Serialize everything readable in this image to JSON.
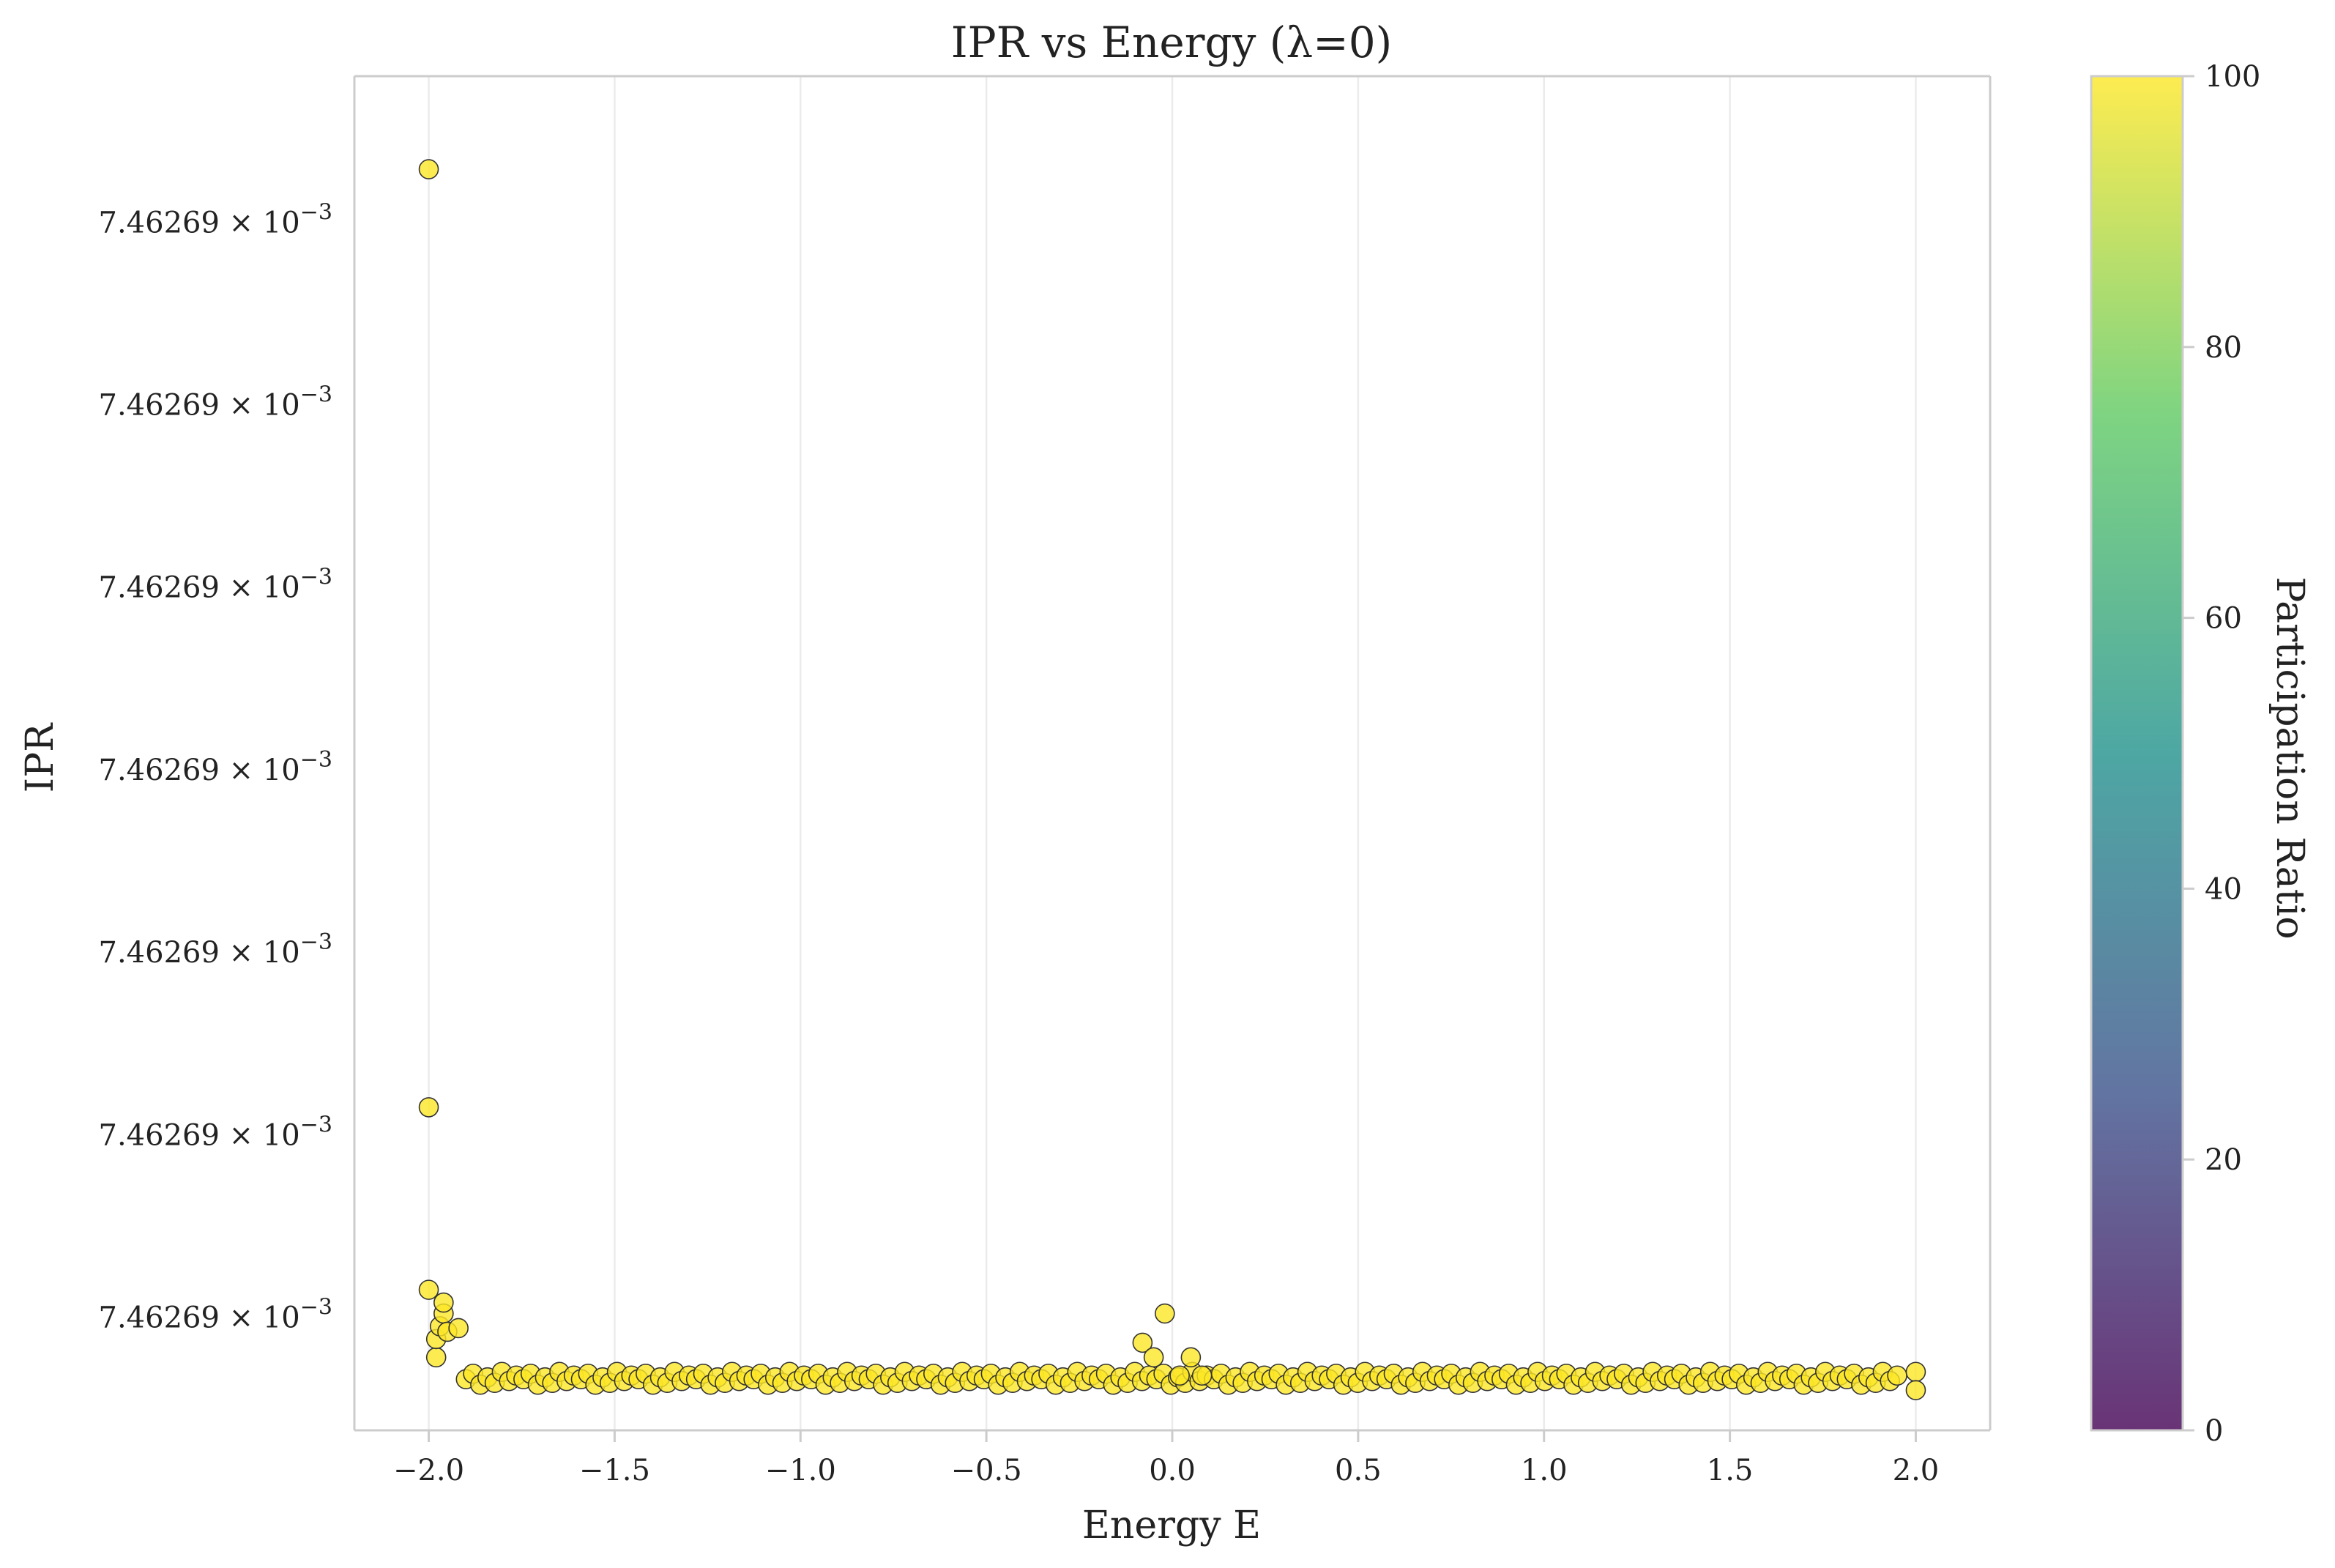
{
  "chart_data": {
    "type": "scatter",
    "title": "IPR vs Energy (λ=0)",
    "xlabel": "Energy E",
    "ylabel": "IPR",
    "xlim": [
      -2.2,
      2.2
    ],
    "x_ticks": [
      "−2.0",
      "−1.5",
      "−1.0",
      "−0.5",
      "0.0",
      "0.5",
      "1.0",
      "1.5",
      "2.0"
    ],
    "x_tick_values": [
      -2.0,
      -1.5,
      -1.0,
      -0.5,
      0.0,
      0.5,
      1.0,
      1.5,
      2.0
    ],
    "ylim": [
      -0.62,
      6.8
    ],
    "y_ticks_note": "relative offsets of IPR above the baseline; all tick labels read the same rounded value",
    "y_tick_values": [
      6.0,
      5.0,
      4.0,
      3.0,
      2.0,
      1.0,
      0.0
    ],
    "y_tick_mantissa": "7.46269",
    "y_tick_exponent_base": "10",
    "y_tick_exponent": "−3",
    "grid": "x-only",
    "colorbar": {
      "label": "Participation Ratio",
      "range": [
        0,
        100
      ],
      "ticks": [
        "0",
        "20",
        "40",
        "60",
        "80",
        "100"
      ],
      "tick_values": [
        0,
        20,
        40,
        60,
        80,
        100
      ],
      "colormap": "viridis",
      "colors": [
        "#440154",
        "#3b528b",
        "#21918c",
        "#5ec962",
        "#fde725"
      ]
    },
    "marker_color": "#fde725",
    "series": [
      {
        "points_outliers": [
          [
            -2.0,
            6.29
          ],
          [
            -2.0,
            1.15
          ],
          [
            -2.0,
            0.15
          ],
          [
            -1.98,
            -0.22
          ],
          [
            -1.98,
            -0.12
          ],
          [
            -1.97,
            -0.05
          ],
          [
            -1.96,
            0.02
          ],
          [
            -1.96,
            0.08
          ],
          [
            -1.95,
            -0.08
          ],
          [
            -1.92,
            -0.06
          ],
          [
            -0.08,
            -0.14
          ],
          [
            -0.05,
            -0.22
          ],
          [
            -0.02,
            0.02
          ],
          [
            0.02,
            -0.32
          ],
          [
            0.05,
            -0.22
          ],
          [
            0.08,
            -0.32
          ],
          [
            2.0,
            -0.3
          ],
          [
            2.0,
            -0.4
          ]
        ],
        "baseline": -0.34,
        "count": 200,
        "jitter": [
          0,
          0.03,
          -0.03,
          0.01,
          -0.02,
          0.04,
          -0.01,
          0.02
        ]
      }
    ]
  }
}
